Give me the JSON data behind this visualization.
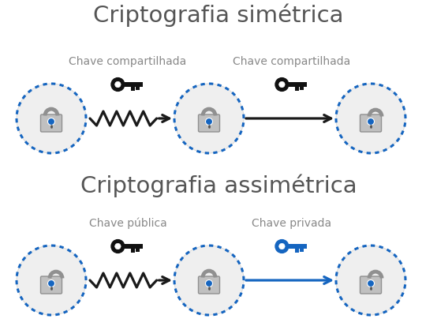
{
  "title_sym": "Criptografia simétrica",
  "title_asym": "Criptografia assimétrica",
  "label_shared_key1": "Chave compartilhada",
  "label_shared_key2": "Chave compartilhada",
  "label_pub_key": "Chave pública",
  "label_priv_key": "Chave privada",
  "bg_color": "#ffffff",
  "circle_bg": "#efefef",
  "circle_border_blue": "#1565c0",
  "arrow_black": "#1a1a1a",
  "arrow_blue": "#1565c0",
  "key_black": "#111111",
  "key_blue": "#1565c0",
  "title_fontsize": 21,
  "label_fontsize": 10
}
